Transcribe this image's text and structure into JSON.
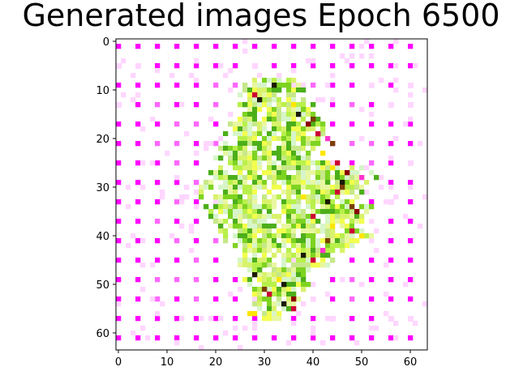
{
  "chart_data": {
    "type": "heatmap",
    "title": "Generated images Epoch 6500",
    "xlabel": "",
    "ylabel": "",
    "grid": false,
    "image_size": [
      64,
      64
    ],
    "xlim": [
      -0.5,
      63.5
    ],
    "ylim": [
      63.5,
      -0.5
    ],
    "x_ticks": [
      0,
      10,
      20,
      30,
      40,
      50,
      60
    ],
    "y_ticks": [
      0,
      10,
      20,
      30,
      40,
      50,
      60
    ],
    "x_tick_labels": [
      "0",
      "10",
      "20",
      "30",
      "40",
      "50",
      "60"
    ],
    "y_tick_labels": [
      "0",
      "10",
      "20",
      "30",
      "40",
      "50",
      "60"
    ],
    "background_color": "#ffffff",
    "pattern": {
      "description_color": "#ff00ff",
      "grid_period": 4,
      "grid_offset": 0,
      "strong_color": "#ff00ff",
      "light_color": "#ff66ff",
      "faint_color": "#ffd6ff"
    },
    "blob": {
      "rows": [
        8,
        60
      ],
      "palette": [
        "#d9f26b",
        "#b8f04a",
        "#e8f7a0",
        "#c6e889",
        "#f2ff4d",
        "#7ed321",
        "#4caf1a",
        "#ffffff",
        "#d7f5c9",
        "#ffe600",
        "#a6a600",
        "#7a3f00",
        "#1a1a00",
        "#cc0033",
        "#8b0000",
        "#ff33cc"
      ],
      "row_extent": [
        [
          8,
          27,
          36
        ],
        [
          9,
          26,
          37
        ],
        [
          10,
          26,
          38
        ],
        [
          11,
          25,
          39
        ],
        [
          12,
          25,
          40
        ],
        [
          13,
          24,
          40
        ],
        [
          14,
          24,
          41
        ],
        [
          15,
          24,
          41
        ],
        [
          16,
          23,
          41
        ],
        [
          17,
          23,
          42
        ],
        [
          18,
          23,
          42
        ],
        [
          19,
          22,
          42
        ],
        [
          20,
          22,
          41
        ],
        [
          21,
          22,
          41
        ],
        [
          22,
          21,
          40
        ],
        [
          23,
          21,
          40
        ],
        [
          24,
          20,
          42
        ],
        [
          25,
          20,
          46
        ],
        [
          26,
          19,
          50
        ],
        [
          27,
          19,
          52
        ],
        [
          28,
          18,
          53
        ],
        [
          29,
          18,
          52
        ],
        [
          30,
          17,
          52
        ],
        [
          31,
          17,
          50
        ],
        [
          32,
          17,
          49
        ],
        [
          33,
          18,
          50
        ],
        [
          34,
          18,
          52
        ],
        [
          35,
          19,
          53
        ],
        [
          36,
          19,
          53
        ],
        [
          37,
          20,
          52
        ],
        [
          38,
          21,
          51
        ],
        [
          39,
          21,
          52
        ],
        [
          40,
          22,
          52
        ],
        [
          41,
          22,
          51
        ],
        [
          42,
          23,
          48
        ],
        [
          43,
          24,
          46
        ],
        [
          44,
          24,
          44
        ],
        [
          45,
          25,
          44
        ],
        [
          46,
          25,
          43
        ],
        [
          47,
          25,
          42
        ],
        [
          48,
          26,
          40
        ],
        [
          49,
          26,
          40
        ],
        [
          50,
          27,
          39
        ],
        [
          51,
          27,
          38
        ],
        [
          52,
          27,
          37
        ],
        [
          53,
          28,
          37
        ],
        [
          54,
          28,
          36
        ],
        [
          55,
          28,
          35
        ],
        [
          56,
          29,
          34
        ],
        [
          57,
          30,
          33
        ]
      ],
      "accents": [
        [
          9,
          32,
          "#1a1a00"
        ],
        [
          9,
          34,
          "#7ed321"
        ],
        [
          10,
          33,
          "#4caf1a"
        ],
        [
          11,
          28,
          "#cc0033"
        ],
        [
          12,
          29,
          "#1a1a00"
        ],
        [
          13,
          26,
          "#4caf1a"
        ],
        [
          13,
          36,
          "#ffe600"
        ],
        [
          14,
          38,
          "#7ed321"
        ],
        [
          15,
          37,
          "#1a1a00"
        ],
        [
          16,
          40,
          "#7a3f00"
        ],
        [
          17,
          39,
          "#8b0000"
        ],
        [
          19,
          41,
          "#cc0033"
        ],
        [
          20,
          43,
          "#ff33cc"
        ],
        [
          21,
          44,
          "#7a3f00"
        ],
        [
          23,
          42,
          "#ffe600"
        ],
        [
          25,
          45,
          "#cc0033"
        ],
        [
          26,
          44,
          "#ffe600"
        ],
        [
          27,
          47,
          "#8b0000"
        ],
        [
          28,
          50,
          "#ff33cc"
        ],
        [
          29,
          46,
          "#1a1a00"
        ],
        [
          30,
          46,
          "#7a3f00"
        ],
        [
          31,
          45,
          "#cc0033"
        ],
        [
          32,
          38,
          "#ffe600"
        ],
        [
          33,
          43,
          "#1a1a00"
        ],
        [
          34,
          48,
          "#7a3f00"
        ],
        [
          35,
          49,
          "#8b0000"
        ],
        [
          36,
          40,
          "#cc0033"
        ],
        [
          38,
          44,
          "#ffe600"
        ],
        [
          39,
          48,
          "#cc0033"
        ],
        [
          40,
          50,
          "#ffe600"
        ],
        [
          41,
          43,
          "#7a3f00"
        ],
        [
          43,
          42,
          "#ff33cc"
        ],
        [
          44,
          38,
          "#1a1a00"
        ],
        [
          45,
          40,
          "#cc0033"
        ],
        [
          46,
          30,
          "#7ed321"
        ],
        [
          47,
          29,
          "#4caf1a"
        ],
        [
          48,
          28,
          "#1a1a00"
        ],
        [
          49,
          33,
          "#ffe600"
        ],
        [
          50,
          34,
          "#1a1a00"
        ],
        [
          51,
          30,
          "#7a3f00"
        ],
        [
          52,
          31,
          "#cc0033"
        ],
        [
          53,
          36,
          "#8b0000"
        ],
        [
          54,
          34,
          "#1a1a00"
        ],
        [
          55,
          36,
          "#cc0033"
        ],
        [
          56,
          27,
          "#ffe600"
        ],
        [
          56,
          28,
          "#ffe600"
        ]
      ]
    }
  }
}
